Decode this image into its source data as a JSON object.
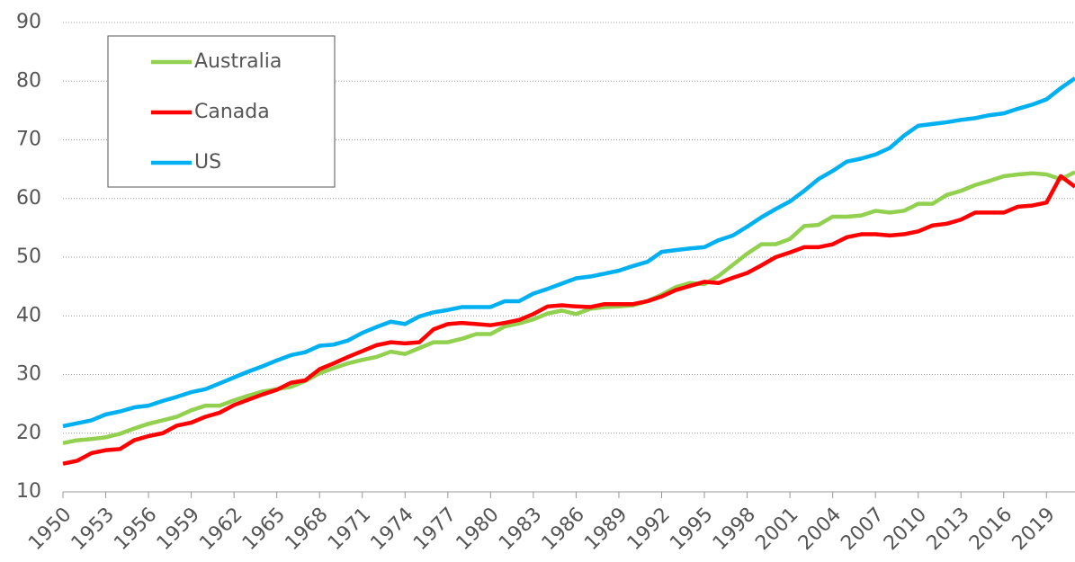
{
  "chart_data": {
    "type": "line",
    "x": [
      1950,
      1951,
      1952,
      1953,
      1954,
      1955,
      1956,
      1957,
      1958,
      1959,
      1960,
      1961,
      1962,
      1963,
      1964,
      1965,
      1966,
      1967,
      1968,
      1969,
      1970,
      1971,
      1972,
      1973,
      1974,
      1975,
      1976,
      1977,
      1978,
      1979,
      1980,
      1981,
      1982,
      1983,
      1984,
      1985,
      1986,
      1987,
      1988,
      1989,
      1990,
      1991,
      1992,
      1993,
      1994,
      1995,
      1996,
      1997,
      1998,
      1999,
      2000,
      2001,
      2002,
      2003,
      2004,
      2005,
      2006,
      2007,
      2008,
      2009,
      2010,
      2011,
      2012,
      2013,
      2014,
      2015,
      2016,
      2017,
      2018,
      2019,
      2020,
      2021
    ],
    "series": [
      {
        "name": "Australia",
        "color": "#92d050",
        "values": [
          18.3,
          18.8,
          19,
          19.3,
          19.9,
          20.8,
          21.6,
          22.2,
          22.8,
          23.9,
          24.7,
          24.7,
          25.6,
          26.4,
          27.1,
          27.5,
          27.9,
          28.9,
          30.2,
          31.1,
          31.9,
          32.5,
          33,
          33.9,
          33.5,
          34.5,
          35.5,
          35.5,
          36.1,
          36.9,
          36.9,
          38.2,
          38.7,
          39.4,
          40.4,
          40.9,
          40.3,
          41.2,
          41.5,
          41.6,
          41.8,
          42.5,
          43.6,
          44.9,
          45.6,
          45.4,
          46.8,
          48.7,
          50.6,
          52.2,
          52.2,
          53.1,
          55.3,
          55.5,
          56.9,
          56.9,
          57.1,
          57.9,
          57.6,
          57.9,
          59.1,
          59.1,
          60.6,
          61.3,
          62.3,
          63,
          63.8,
          64.1,
          64.3,
          64.1,
          63.3,
          64.5
        ]
      },
      {
        "name": "Canada",
        "color": "#ff0000",
        "values": [
          14.8,
          15.3,
          16.6,
          17.1,
          17.3,
          18.8,
          19.5,
          20,
          21.3,
          21.8,
          22.8,
          23.5,
          24.8,
          25.7,
          26.6,
          27.4,
          28.6,
          29,
          30.9,
          31.9,
          33,
          34,
          35,
          35.5,
          35.3,
          35.5,
          37.7,
          38.6,
          38.8,
          38.6,
          38.4,
          38.8,
          39.3,
          40.3,
          41.6,
          41.8,
          41.6,
          41.5,
          42,
          42,
          42,
          42.5,
          43.3,
          44.4,
          45.1,
          45.8,
          45.6,
          46.5,
          47.3,
          48.6,
          50,
          50.8,
          51.7,
          51.7,
          52.2,
          53.4,
          53.9,
          53.9,
          53.7,
          53.9,
          54.4,
          55.4,
          55.7,
          56.4,
          57.6,
          57.6,
          57.6,
          58.6,
          58.8,
          59.3,
          63.8,
          62
        ]
      },
      {
        "name": "US",
        "color": "#00b0f0",
        "values": [
          21.2,
          21.7,
          22.2,
          23.2,
          23.7,
          24.4,
          24.7,
          25.5,
          26.2,
          27,
          27.5,
          28.5,
          29.5,
          30.5,
          31.4,
          32.4,
          33.3,
          33.8,
          34.9,
          35.1,
          35.8,
          37.1,
          38.1,
          39,
          38.6,
          39.9,
          40.6,
          41,
          41.5,
          41.5,
          41.5,
          42.5,
          42.5,
          43.8,
          44.6,
          45.5,
          46.4,
          46.7,
          47.2,
          47.7,
          48.5,
          49.2,
          50.9,
          51.2,
          51.5,
          51.7,
          52.9,
          53.7,
          55.2,
          56.8,
          58.2,
          59.5,
          61.3,
          63.3,
          64.7,
          66.3,
          66.8,
          67.5,
          68.6,
          70.7,
          72.4,
          72.7,
          73,
          73.4,
          73.7,
          74.2,
          74.5,
          75.3,
          76,
          76.9,
          78.8,
          80.5
        ]
      }
    ],
    "xlim": [
      1950,
      2021
    ],
    "xticks": [
      1950,
      1953,
      1956,
      1959,
      1962,
      1965,
      1968,
      1971,
      1974,
      1977,
      1980,
      1983,
      1986,
      1989,
      1992,
      1995,
      1998,
      2001,
      2004,
      2007,
      2010,
      2013,
      2016,
      2019
    ],
    "ylim": [
      10,
      90
    ],
    "yticks": [
      10,
      20,
      30,
      40,
      50,
      60,
      70,
      80,
      90
    ],
    "grid": true,
    "legend": "upper left"
  }
}
